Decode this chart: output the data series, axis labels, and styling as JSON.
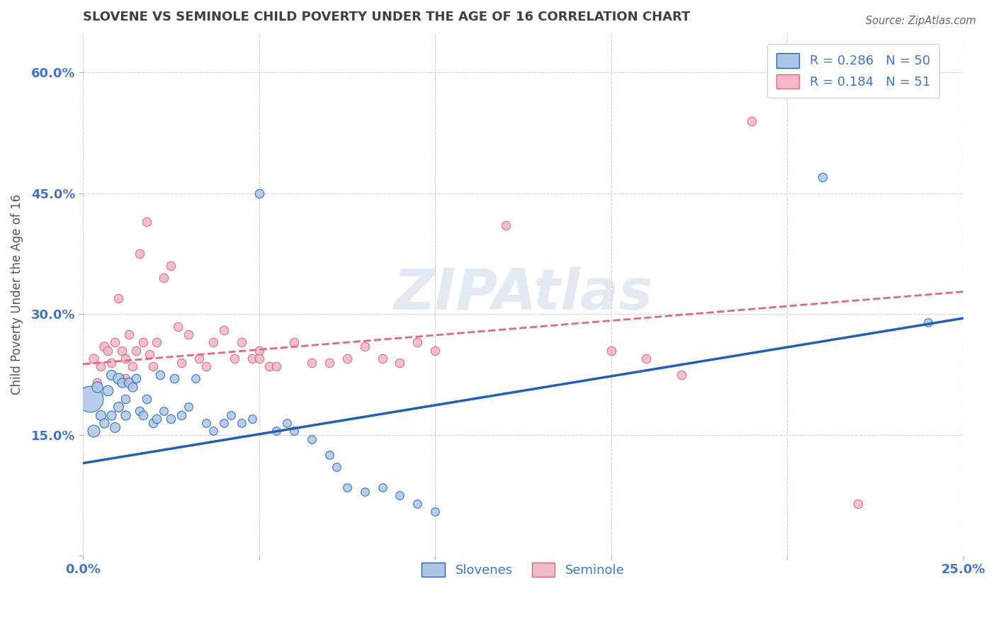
{
  "title": "SLOVENE VS SEMINOLE CHILD POVERTY UNDER THE AGE OF 16 CORRELATION CHART",
  "source": "Source: ZipAtlas.com",
  "ylabel": "Child Poverty Under the Age of 16",
  "xlim": [
    0.0,
    0.25
  ],
  "ylim": [
    0.0,
    0.65
  ],
  "xticks": [
    0.0,
    0.05,
    0.1,
    0.15,
    0.2,
    0.25
  ],
  "xticklabels": [
    "0.0%",
    "",
    "",
    "",
    "",
    "25.0%"
  ],
  "yticks": [
    0.0,
    0.15,
    0.3,
    0.45,
    0.6
  ],
  "yticklabels": [
    "",
    "15.0%",
    "30.0%",
    "45.0%",
    "60.0%"
  ],
  "legend_labels": [
    "Slovenes",
    "Seminole"
  ],
  "slovene_color": "#adc6e8",
  "seminole_color": "#f5b8c8",
  "slovene_line_color": "#2060b0",
  "seminole_line_color": "#e06880",
  "R_slovene": 0.286,
  "N_slovene": 50,
  "R_seminole": 0.184,
  "N_seminole": 51,
  "background_color": "#ffffff",
  "grid_color": "#cccccc",
  "title_color": "#404040",
  "axis_label_color": "#4472c4",
  "slovene_trendline": [
    0.0,
    0.115,
    0.25,
    0.295
  ],
  "seminole_trendline": [
    0.0,
    0.238,
    0.25,
    0.328
  ],
  "slovene_points": [
    [
      0.002,
      0.195,
      700
    ],
    [
      0.003,
      0.155,
      150
    ],
    [
      0.004,
      0.21,
      120
    ],
    [
      0.005,
      0.175,
      100
    ],
    [
      0.006,
      0.165,
      90
    ],
    [
      0.007,
      0.205,
      110
    ],
    [
      0.008,
      0.225,
      100
    ],
    [
      0.008,
      0.175,
      90
    ],
    [
      0.009,
      0.16,
      100
    ],
    [
      0.01,
      0.22,
      120
    ],
    [
      0.01,
      0.185,
      100
    ],
    [
      0.011,
      0.215,
      90
    ],
    [
      0.012,
      0.195,
      80
    ],
    [
      0.012,
      0.175,
      90
    ],
    [
      0.013,
      0.215,
      100
    ],
    [
      0.014,
      0.21,
      90
    ],
    [
      0.015,
      0.22,
      80
    ],
    [
      0.016,
      0.18,
      80
    ],
    [
      0.017,
      0.175,
      80
    ],
    [
      0.018,
      0.195,
      80
    ],
    [
      0.02,
      0.165,
      80
    ],
    [
      0.021,
      0.17,
      80
    ],
    [
      0.022,
      0.225,
      80
    ],
    [
      0.023,
      0.18,
      70
    ],
    [
      0.025,
      0.17,
      80
    ],
    [
      0.026,
      0.22,
      80
    ],
    [
      0.028,
      0.175,
      80
    ],
    [
      0.03,
      0.185,
      70
    ],
    [
      0.032,
      0.22,
      70
    ],
    [
      0.035,
      0.165,
      70
    ],
    [
      0.037,
      0.155,
      70
    ],
    [
      0.04,
      0.165,
      70
    ],
    [
      0.042,
      0.175,
      70
    ],
    [
      0.045,
      0.165,
      70
    ],
    [
      0.048,
      0.17,
      70
    ],
    [
      0.05,
      0.45,
      80
    ],
    [
      0.055,
      0.155,
      70
    ],
    [
      0.058,
      0.165,
      70
    ],
    [
      0.06,
      0.155,
      70
    ],
    [
      0.065,
      0.145,
      70
    ],
    [
      0.07,
      0.125,
      70
    ],
    [
      0.072,
      0.11,
      70
    ],
    [
      0.075,
      0.085,
      70
    ],
    [
      0.08,
      0.08,
      70
    ],
    [
      0.085,
      0.085,
      70
    ],
    [
      0.09,
      0.075,
      70
    ],
    [
      0.095,
      0.065,
      70
    ],
    [
      0.1,
      0.055,
      70
    ],
    [
      0.21,
      0.47,
      80
    ],
    [
      0.24,
      0.29,
      70
    ]
  ],
  "seminole_points": [
    [
      0.003,
      0.245,
      90
    ],
    [
      0.004,
      0.215,
      80
    ],
    [
      0.005,
      0.235,
      80
    ],
    [
      0.006,
      0.26,
      90
    ],
    [
      0.007,
      0.255,
      80
    ],
    [
      0.008,
      0.24,
      80
    ],
    [
      0.009,
      0.265,
      80
    ],
    [
      0.01,
      0.32,
      80
    ],
    [
      0.011,
      0.255,
      80
    ],
    [
      0.012,
      0.22,
      80
    ],
    [
      0.012,
      0.245,
      80
    ],
    [
      0.013,
      0.275,
      80
    ],
    [
      0.014,
      0.235,
      80
    ],
    [
      0.015,
      0.255,
      80
    ],
    [
      0.016,
      0.375,
      80
    ],
    [
      0.017,
      0.265,
      80
    ],
    [
      0.018,
      0.415,
      80
    ],
    [
      0.019,
      0.25,
      80
    ],
    [
      0.02,
      0.235,
      80
    ],
    [
      0.021,
      0.265,
      80
    ],
    [
      0.023,
      0.345,
      80
    ],
    [
      0.025,
      0.36,
      80
    ],
    [
      0.027,
      0.285,
      80
    ],
    [
      0.028,
      0.24,
      80
    ],
    [
      0.03,
      0.275,
      80
    ],
    [
      0.033,
      0.245,
      80
    ],
    [
      0.035,
      0.235,
      80
    ],
    [
      0.037,
      0.265,
      80
    ],
    [
      0.04,
      0.28,
      80
    ],
    [
      0.043,
      0.245,
      80
    ],
    [
      0.045,
      0.265,
      80
    ],
    [
      0.048,
      0.245,
      80
    ],
    [
      0.05,
      0.255,
      80
    ],
    [
      0.05,
      0.245,
      80
    ],
    [
      0.053,
      0.235,
      80
    ],
    [
      0.055,
      0.235,
      80
    ],
    [
      0.06,
      0.265,
      80
    ],
    [
      0.065,
      0.24,
      80
    ],
    [
      0.07,
      0.24,
      80
    ],
    [
      0.075,
      0.245,
      80
    ],
    [
      0.08,
      0.26,
      80
    ],
    [
      0.085,
      0.245,
      80
    ],
    [
      0.09,
      0.24,
      80
    ],
    [
      0.095,
      0.265,
      80
    ],
    [
      0.1,
      0.255,
      80
    ],
    [
      0.12,
      0.41,
      80
    ],
    [
      0.15,
      0.255,
      80
    ],
    [
      0.16,
      0.245,
      80
    ],
    [
      0.17,
      0.225,
      80
    ],
    [
      0.19,
      0.54,
      80
    ],
    [
      0.22,
      0.065,
      80
    ]
  ]
}
